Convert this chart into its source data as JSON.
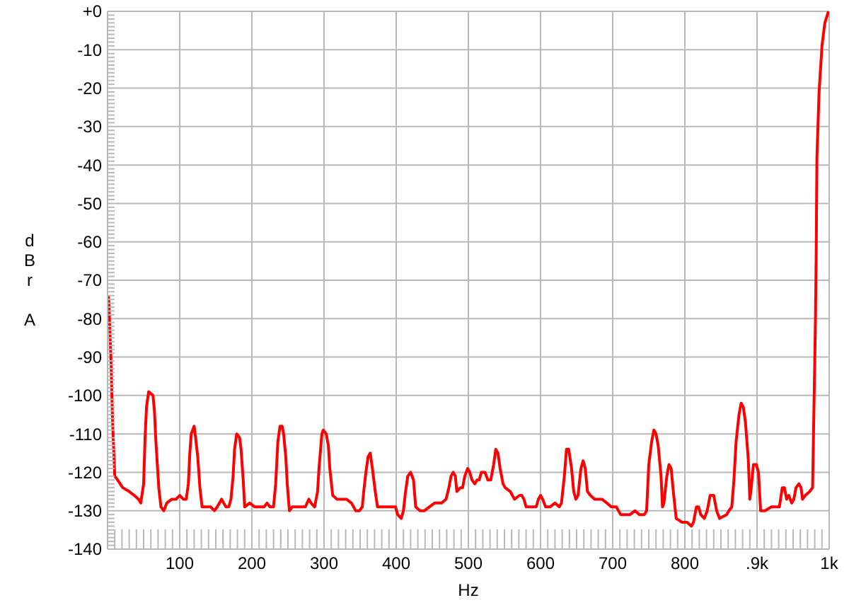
{
  "chart_data": {
    "type": "line",
    "xlabel": "Hz",
    "ylabel": "dBr A",
    "x": [
      1,
      2,
      3,
      5,
      7,
      10,
      14,
      21,
      30,
      37,
      43,
      46,
      50,
      52,
      54,
      57,
      63,
      65,
      67,
      71,
      74,
      78,
      82,
      89,
      95,
      100,
      105,
      109,
      112,
      114,
      116,
      120,
      122,
      125,
      128,
      131,
      138,
      143,
      148,
      152,
      158,
      161,
      164,
      168,
      171,
      174,
      176,
      179,
      183,
      185,
      188,
      190,
      197,
      204,
      210,
      217,
      221,
      225,
      230,
      233,
      236,
      239,
      242,
      244,
      247,
      249,
      252,
      256,
      262,
      269,
      274,
      279,
      282,
      287,
      291,
      293,
      297,
      299,
      303,
      306,
      308,
      312,
      318,
      325,
      331,
      338,
      344,
      349,
      353,
      355,
      358,
      361,
      364,
      367,
      371,
      374,
      380,
      387,
      393,
      399,
      402,
      407,
      410,
      413,
      416,
      420,
      424,
      427,
      433,
      439,
      446,
      453,
      463,
      469,
      473,
      476,
      479,
      482,
      484,
      489,
      492,
      495,
      499,
      502,
      505,
      509,
      512,
      515,
      518,
      523,
      527,
      531,
      535,
      538,
      541,
      544,
      548,
      551,
      558,
      564,
      571,
      574,
      577,
      580,
      587,
      594,
      597,
      600,
      603,
      607,
      613,
      620,
      626,
      629,
      633,
      636,
      639,
      643,
      646,
      649,
      652,
      656,
      659,
      662,
      665,
      669,
      675,
      685,
      692,
      698,
      705,
      711,
      718,
      724,
      731,
      737,
      744,
      747,
      750,
      754,
      757,
      760,
      763,
      767,
      769,
      771,
      775,
      778,
      781,
      784,
      788,
      796,
      803,
      809,
      812,
      816,
      819,
      822,
      827,
      831,
      835,
      840,
      844,
      848,
      858,
      861,
      865,
      868,
      871,
      875,
      878,
      881,
      884,
      888,
      890,
      892,
      895,
      899,
      902,
      905,
      911,
      920,
      927,
      931,
      935,
      938,
      941,
      944,
      948,
      951,
      954,
      958,
      961,
      963,
      967,
      973,
      977,
      979,
      981,
      982,
      983,
      986,
      990,
      994,
      999
    ],
    "series": [
      {
        "color": "#ff0000",
        "values": [
          -74,
          -76,
          -82,
          -92,
          -107,
          -121,
          -122,
          -124,
          -125,
          -126,
          -127,
          -128,
          -123,
          -111,
          -103,
          -99,
          -100,
          -104,
          -112,
          -124,
          -129,
          -130,
          -128,
          -127,
          -127,
          -126,
          -127,
          -127,
          -123,
          -115,
          -110,
          -108,
          -111,
          -116,
          -124,
          -129,
          -129,
          -129,
          -130,
          -129,
          -127,
          -128,
          -129,
          -129,
          -127,
          -121,
          -114,
          -110,
          -111,
          -114,
          -122,
          -129,
          -128,
          -129,
          -129,
          -129,
          -128,
          -129,
          -129,
          -123,
          -112,
          -108,
          -108,
          -110,
          -116,
          -123,
          -130,
          -129,
          -129,
          -129,
          -129,
          -127,
          -128,
          -129,
          -125,
          -119,
          -110,
          -109,
          -110,
          -113,
          -119,
          -126,
          -127,
          -127,
          -127,
          -128,
          -130,
          -130,
          -129,
          -125,
          -120,
          -116,
          -115,
          -119,
          -125,
          -129,
          -129,
          -129,
          -129,
          -129,
          -131,
          -132,
          -130,
          -125,
          -121,
          -120,
          -122,
          -129,
          -130,
          -130,
          -129,
          -128,
          -128,
          -127,
          -124,
          -121,
          -120,
          -121,
          -125,
          -124,
          -124,
          -121,
          -119,
          -120,
          -122,
          -123,
          -122,
          -122,
          -120,
          -120,
          -122,
          -122,
          -118,
          -114,
          -115,
          -119,
          -123,
          -124,
          -125,
          -127,
          -126,
          -126,
          -127,
          -129,
          -129,
          -129,
          -127,
          -126,
          -127,
          -129,
          -129,
          -128,
          -129,
          -128,
          -121,
          -114,
          -114,
          -119,
          -125,
          -127,
          -126,
          -119,
          -117,
          -119,
          -125,
          -126,
          -127,
          -127,
          -128,
          -129,
          -129,
          -131,
          -131,
          -131,
          -130,
          -131,
          -131,
          -130,
          -118,
          -112,
          -109,
          -110,
          -113,
          -121,
          -129,
          -128,
          -121,
          -118,
          -119,
          -125,
          -132,
          -133,
          -133,
          -134,
          -133,
          -129,
          -129,
          -131,
          -132,
          -130,
          -126,
          -126,
          -130,
          -132,
          -131,
          -130,
          -129,
          -122,
          -112,
          -105,
          -102,
          -103,
          -107,
          -117,
          -127,
          -124,
          -118,
          -118,
          -120,
          -130,
          -130,
          -129,
          -129,
          -129,
          -124,
          -124,
          -127,
          -126,
          -128,
          -127,
          -124,
          -123,
          -124,
          -127,
          -126,
          -125,
          -124,
          -102,
          -80,
          -63,
          -38,
          -21,
          -9,
          -3,
          0
        ]
      }
    ],
    "xlim": [
      0,
      1000
    ],
    "ylim": [
      -140,
      0
    ],
    "xticks": [
      {
        "value": 10,
        "label": null
      },
      {
        "value": 20,
        "label": null
      },
      {
        "value": 30,
        "label": null
      },
      {
        "value": 40,
        "label": null
      },
      {
        "value": 50,
        "label": null
      },
      {
        "value": 60,
        "label": null
      },
      {
        "value": 70,
        "label": null
      },
      {
        "value": 80,
        "label": null
      },
      {
        "value": 90,
        "label": null
      },
      100,
      {
        "value": 110,
        "label": null
      },
      {
        "value": 120,
        "label": null
      },
      {
        "value": 130,
        "label": null
      },
      {
        "value": 140,
        "label": null
      },
      {
        "value": 150,
        "label": null
      },
      {
        "value": 160,
        "label": null
      },
      {
        "value": 170,
        "label": null
      },
      {
        "value": 180,
        "label": null
      },
      {
        "value": 190,
        "label": null
      },
      200,
      {
        "value": 210,
        "label": null
      },
      {
        "value": 220,
        "label": null
      },
      {
        "value": 230,
        "label": null
      },
      {
        "value": 240,
        "label": null
      },
      {
        "value": 250,
        "label": null
      },
      {
        "value": 260,
        "label": null
      },
      {
        "value": 270,
        "label": null
      },
      {
        "value": 280,
        "label": null
      },
      {
        "value": 290,
        "label": null
      },
      300,
      {
        "value": 310,
        "label": null
      },
      {
        "value": 320,
        "label": null
      },
      {
        "value": 330,
        "label": null
      },
      {
        "value": 340,
        "label": null
      },
      {
        "value": 350,
        "label": null
      },
      {
        "value": 360,
        "label": null
      },
      {
        "value": 370,
        "label": null
      },
      {
        "value": 380,
        "label": null
      },
      {
        "value": 390,
        "label": null
      },
      400,
      {
        "value": 410,
        "label": null
      },
      {
        "value": 420,
        "label": null
      },
      {
        "value": 430,
        "label": null
      },
      {
        "value": 440,
        "label": null
      },
      {
        "value": 450,
        "label": null
      },
      {
        "value": 460,
        "label": null
      },
      {
        "value": 470,
        "label": null
      },
      {
        "value": 480,
        "label": null
      },
      {
        "value": 490,
        "label": null
      },
      500,
      {
        "value": 510,
        "label": null
      },
      {
        "value": 520,
        "label": null
      },
      {
        "value": 530,
        "label": null
      },
      {
        "value": 540,
        "label": null
      },
      {
        "value": 550,
        "label": null
      },
      {
        "value": 560,
        "label": null
      },
      {
        "value": 570,
        "label": null
      },
      {
        "value": 580,
        "label": null
      },
      {
        "value": 590,
        "label": null
      },
      600,
      {
        "value": 610,
        "label": null
      },
      {
        "value": 620,
        "label": null
      },
      {
        "value": 630,
        "label": null
      },
      {
        "value": 640,
        "label": null
      },
      {
        "value": 650,
        "label": null
      },
      {
        "value": 660,
        "label": null
      },
      {
        "value": 670,
        "label": null
      },
      {
        "value": 680,
        "label": null
      },
      {
        "value": 690,
        "label": null
      },
      700,
      {
        "value": 710,
        "label": null
      },
      {
        "value": 720,
        "label": null
      },
      {
        "value": 730,
        "label": null
      },
      {
        "value": 740,
        "label": null
      },
      {
        "value": 750,
        "label": null
      },
      {
        "value": 760,
        "label": null
      },
      {
        "value": 770,
        "label": null
      },
      {
        "value": 780,
        "label": null
      },
      {
        "value": 790,
        "label": null
      },
      800,
      {
        "value": 810,
        "label": null
      },
      {
        "value": 820,
        "label": null
      },
      {
        "value": 830,
        "label": null
      },
      {
        "value": 840,
        "label": null
      },
      {
        "value": 850,
        "label": null
      },
      {
        "value": 860,
        "label": null
      },
      {
        "value": 870,
        "label": null
      },
      {
        "value": 880,
        "label": null
      },
      {
        "value": 890,
        "label": null
      },
      {
        "value": 900,
        "label": ".9k"
      },
      {
        "value": 910,
        "label": null
      },
      {
        "value": 920,
        "label": null
      },
      {
        "value": 930,
        "label": null
      },
      {
        "value": 940,
        "label": null
      },
      {
        "value": 950,
        "label": null
      },
      {
        "value": 960,
        "label": null
      },
      {
        "value": 970,
        "label": null
      },
      {
        "value": 980,
        "label": null
      },
      {
        "value": 990,
        "label": null
      },
      {
        "value": 1000,
        "label": "1k"
      }
    ],
    "yticks": [
      -140,
      {
        "value": -139,
        "label": null
      },
      {
        "value": -138,
        "label": null
      },
      {
        "value": -137,
        "label": null
      },
      {
        "value": -136,
        "label": null
      },
      {
        "value": -135,
        "label": null
      },
      {
        "value": -134,
        "label": null
      },
      {
        "value": -133,
        "label": null
      },
      {
        "value": -132,
        "label": null
      },
      {
        "value": -131,
        "label": null
      },
      -130,
      {
        "value": -129,
        "label": null
      },
      {
        "value": -128,
        "label": null
      },
      {
        "value": -127,
        "label": null
      },
      {
        "value": -126,
        "label": null
      },
      {
        "value": -125,
        "label": null
      },
      {
        "value": -124,
        "label": null
      },
      {
        "value": -123,
        "label": null
      },
      {
        "value": -122,
        "label": null
      },
      {
        "value": -121,
        "label": null
      },
      -120,
      {
        "value": -119,
        "label": null
      },
      {
        "value": -118,
        "label": null
      },
      {
        "value": -117,
        "label": null
      },
      {
        "value": -116,
        "label": null
      },
      {
        "value": -115,
        "label": null
      },
      {
        "value": -114,
        "label": null
      },
      {
        "value": -113,
        "label": null
      },
      {
        "value": -112,
        "label": null
      },
      {
        "value": -111,
        "label": null
      },
      -110,
      {
        "value": -109,
        "label": null
      },
      {
        "value": -108,
        "label": null
      },
      {
        "value": -107,
        "label": null
      },
      {
        "value": -106,
        "label": null
      },
      {
        "value": -105,
        "label": null
      },
      {
        "value": -104,
        "label": null
      },
      {
        "value": -103,
        "label": null
      },
      {
        "value": -102,
        "label": null
      },
      {
        "value": -101,
        "label": null
      },
      -100,
      {
        "value": -99,
        "label": null
      },
      {
        "value": -98,
        "label": null
      },
      {
        "value": -97,
        "label": null
      },
      {
        "value": -96,
        "label": null
      },
      {
        "value": -95,
        "label": null
      },
      {
        "value": -94,
        "label": null
      },
      {
        "value": -93,
        "label": null
      },
      {
        "value": -92,
        "label": null
      },
      {
        "value": -91,
        "label": null
      },
      -90,
      {
        "value": -89,
        "label": null
      },
      {
        "value": -88,
        "label": null
      },
      {
        "value": -87,
        "label": null
      },
      {
        "value": -86,
        "label": null
      },
      {
        "value": -85,
        "label": null
      },
      {
        "value": -84,
        "label": null
      },
      {
        "value": -83,
        "label": null
      },
      {
        "value": -82,
        "label": null
      },
      {
        "value": -81,
        "label": null
      },
      -80,
      {
        "value": -79,
        "label": null
      },
      {
        "value": -78,
        "label": null
      },
      {
        "value": -77,
        "label": null
      },
      {
        "value": -76,
        "label": null
      },
      {
        "value": -75,
        "label": null
      },
      {
        "value": -74,
        "label": null
      },
      {
        "value": -73,
        "label": null
      },
      {
        "value": -72,
        "label": null
      },
      {
        "value": -71,
        "label": null
      },
      -70,
      {
        "value": -69,
        "label": null
      },
      {
        "value": -68,
        "label": null
      },
      {
        "value": -67,
        "label": null
      },
      {
        "value": -66,
        "label": null
      },
      {
        "value": -65,
        "label": null
      },
      {
        "value": -64,
        "label": null
      },
      {
        "value": -63,
        "label": null
      },
      {
        "value": -62,
        "label": null
      },
      {
        "value": -61,
        "label": null
      },
      -60,
      {
        "value": -59,
        "label": null
      },
      {
        "value": -58,
        "label": null
      },
      {
        "value": -57,
        "label": null
      },
      {
        "value": -56,
        "label": null
      },
      {
        "value": -55,
        "label": null
      },
      {
        "value": -54,
        "label": null
      },
      {
        "value": -53,
        "label": null
      },
      {
        "value": -52,
        "label": null
      },
      {
        "value": -51,
        "label": null
      },
      -50,
      {
        "value": -49,
        "label": null
      },
      {
        "value": -48,
        "label": null
      },
      {
        "value": -47,
        "label": null
      },
      {
        "value": -46,
        "label": null
      },
      {
        "value": -45,
        "label": null
      },
      {
        "value": -44,
        "label": null
      },
      {
        "value": -43,
        "label": null
      },
      {
        "value": -42,
        "label": null
      },
      {
        "value": -41,
        "label": null
      },
      -40,
      {
        "value": -39,
        "label": null
      },
      {
        "value": -38,
        "label": null
      },
      {
        "value": -37,
        "label": null
      },
      {
        "value": -36,
        "label": null
      },
      {
        "value": -35,
        "label": null
      },
      {
        "value": -34,
        "label": null
      },
      {
        "value": -33,
        "label": null
      },
      {
        "value": -32,
        "label": null
      },
      {
        "value": -31,
        "label": null
      },
      -30,
      {
        "value": -29,
        "label": null
      },
      {
        "value": -28,
        "label": null
      },
      {
        "value": -27,
        "label": null
      },
      {
        "value": -26,
        "label": null
      },
      {
        "value": -25,
        "label": null
      },
      {
        "value": -24,
        "label": null
      },
      {
        "value": -23,
        "label": null
      },
      {
        "value": -22,
        "label": null
      },
      {
        "value": -21,
        "label": null
      },
      -20,
      {
        "value": -19,
        "label": null
      },
      {
        "value": -18,
        "label": null
      },
      {
        "value": -17,
        "label": null
      },
      {
        "value": -16,
        "label": null
      },
      {
        "value": -15,
        "label": null
      },
      {
        "value": -14,
        "label": null
      },
      {
        "value": -13,
        "label": null
      },
      {
        "value": -12,
        "label": null
      },
      {
        "value": -11,
        "label": null
      },
      -10,
      {
        "value": -9,
        "label": null
      },
      {
        "value": -8,
        "label": null
      },
      {
        "value": -7,
        "label": null
      },
      {
        "value": -6,
        "label": null
      },
      {
        "value": -5,
        "label": null
      },
      {
        "value": -4,
        "label": null
      },
      {
        "value": -3,
        "label": null
      },
      {
        "value": -2,
        "label": null
      },
      {
        "value": -1,
        "label": null
      },
      {
        "value": 0,
        "label": "+0"
      }
    ],
    "grid": true,
    "marker": "none",
    "line_style": "solid"
  }
}
